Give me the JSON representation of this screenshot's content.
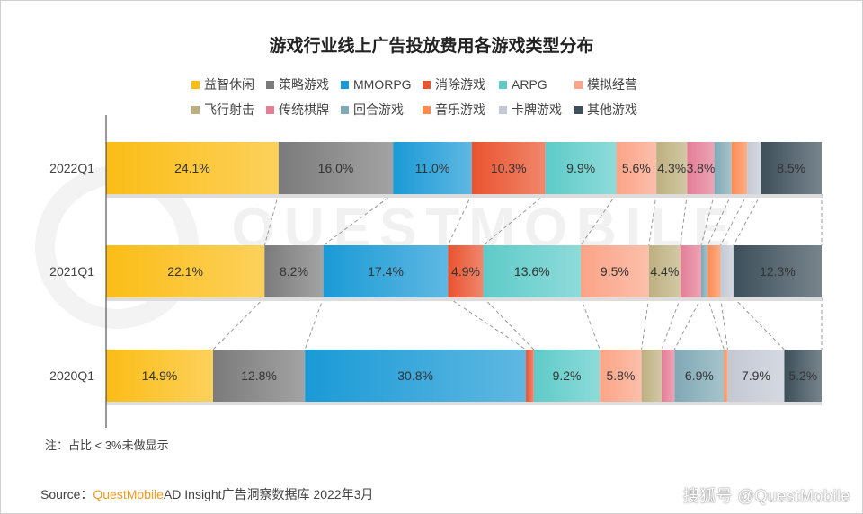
{
  "chart_data": {
    "type": "bar",
    "stacked": true,
    "orientation": "horizontal",
    "percent": true,
    "title": "游戏行业线上广告投放费用各游戏类型分布",
    "categories": [
      "2022Q1",
      "2021Q1",
      "2020Q1"
    ],
    "legend_position": "top",
    "series": [
      {
        "name": "益智休闲",
        "color": "#fbbd16",
        "values": [
          24.1,
          22.1,
          14.9
        ]
      },
      {
        "name": "策略游戏",
        "color": "#7b7b7b",
        "values": [
          16.0,
          8.2,
          12.8
        ]
      },
      {
        "name": "MMORPG",
        "color": "#1a9ad6",
        "values": [
          11.0,
          17.4,
          30.8
        ]
      },
      {
        "name": "消除游戏",
        "color": "#e9532f",
        "values": [
          10.3,
          4.9,
          1.1
        ]
      },
      {
        "name": "ARPG",
        "color": "#5ecbc8",
        "values": [
          9.9,
          13.6,
          9.2
        ]
      },
      {
        "name": "模拟经营",
        "color": "#fba487",
        "values": [
          5.6,
          9.5,
          5.8
        ]
      },
      {
        "name": "飞行射击",
        "color": "#bdb080",
        "values": [
          4.3,
          4.4,
          2.8
        ]
      },
      {
        "name": "传统棋牌",
        "color": "#e47d96",
        "values": [
          3.8,
          2.9,
          1.8
        ]
      },
      {
        "name": "回合游戏",
        "color": "#80a9b5",
        "values": [
          2.4,
          0.9,
          6.9
        ]
      },
      {
        "name": "音乐游戏",
        "color": "#fd8b52",
        "values": [
          2.2,
          1.8,
          0.5
        ]
      },
      {
        "name": "卡牌游戏",
        "color": "#c3c8d4",
        "values": [
          1.9,
          1.8,
          7.9
        ]
      },
      {
        "name": "其他游戏",
        "color": "#3d4f5a",
        "values": [
          8.5,
          12.3,
          5.2
        ]
      }
    ],
    "label_threshold": 3
  },
  "note": "注：占比 < 3%未做显示",
  "source": {
    "prefix": "Source：",
    "brand": "QuestMobile",
    "text": "AD Insight广告洞察数据库 2022年3月"
  },
  "watermark": "搜狐号 @QuestMobile",
  "background_watermark": "QUESTMOBILE"
}
